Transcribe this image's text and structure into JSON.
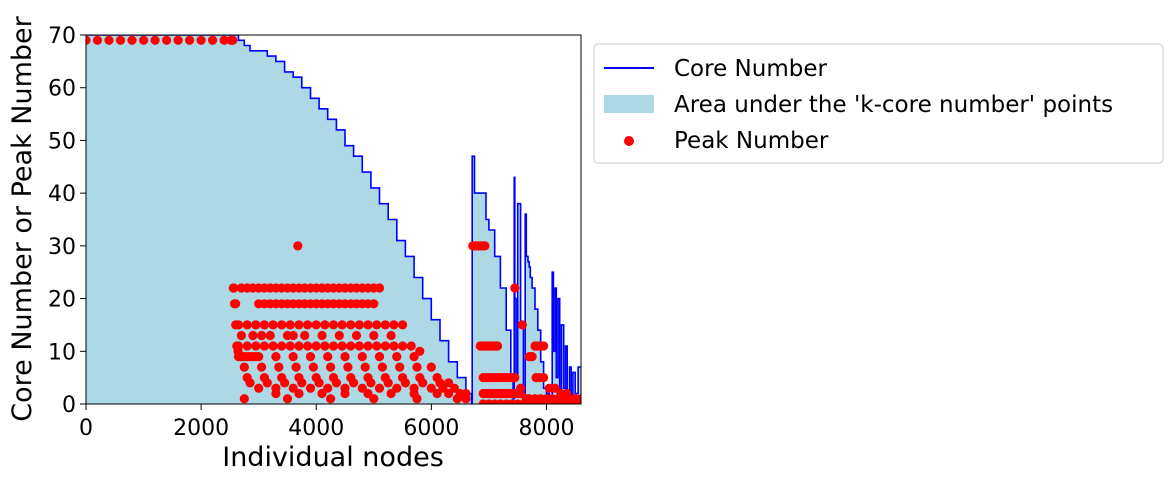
{
  "chart_data": {
    "type": "line",
    "title": "",
    "xlabel": "Individual nodes",
    "ylabel": "Core Number or Peak Number",
    "xlim": [
      0,
      8600
    ],
    "ylim": [
      0,
      70
    ],
    "xticks": [
      0,
      2000,
      4000,
      6000,
      8000
    ],
    "yticks": [
      0,
      10,
      20,
      30,
      40,
      50,
      60,
      70
    ],
    "grid": false,
    "legend_position": "outside-right-top",
    "legend": {
      "core": "Core Number",
      "area": "Area under the 'k-core number' points",
      "peak": "Peak Number"
    },
    "colors": {
      "line": "#0000ff",
      "area": "#add8e6",
      "points": "#ff0000"
    },
    "series": [
      {
        "name": "Core Number",
        "x": [
          0,
          2550,
          2650,
          2750,
          2850,
          3000,
          3150,
          3300,
          3450,
          3600,
          3750,
          3900,
          4050,
          4200,
          4350,
          4500,
          4650,
          4800,
          4950,
          5100,
          5250,
          5400,
          5550,
          5700,
          5850,
          6000,
          6150,
          6300,
          6450,
          6600,
          6700,
          6710,
          6750,
          6780,
          6900,
          6950,
          7000,
          7100,
          7200,
          7300,
          7380,
          7420,
          7440,
          7450,
          7470,
          7500,
          7550,
          7600,
          7630,
          7650,
          7680,
          7700,
          7720,
          7750,
          7800,
          7850,
          7900,
          7950,
          8000,
          8050,
          8080,
          8100,
          8120,
          8150,
          8170,
          8200,
          8230,
          8260,
          8300,
          8330,
          8360,
          8400,
          8430,
          8460,
          8500,
          8550,
          8600
        ],
        "y": [
          70,
          70,
          69,
          68,
          67,
          67,
          66,
          65,
          63,
          62,
          60,
          58,
          56,
          54,
          52,
          49,
          47,
          44,
          41,
          38,
          35,
          31,
          28,
          24,
          20,
          16,
          12,
          8,
          5,
          2,
          0,
          47,
          40,
          40,
          40,
          35,
          33,
          28,
          22,
          14,
          5,
          1,
          43,
          20,
          5,
          38,
          15,
          2,
          36,
          28,
          27,
          26,
          24,
          22,
          18,
          14,
          8,
          3,
          2,
          1,
          0,
          25,
          10,
          22,
          5,
          20,
          2,
          15,
          3,
          11,
          1,
          7,
          0,
          6,
          2,
          7,
          7
        ]
      },
      {
        "name": "Peak Number",
        "x": [
          0,
          200,
          400,
          600,
          800,
          1000,
          1200,
          1400,
          1600,
          1800,
          2000,
          2200,
          2400,
          2520,
          2550,
          2560,
          2570,
          2580,
          2600,
          2600,
          2620,
          2640,
          2650,
          2700,
          2750,
          2800,
          2850,
          2900,
          2950,
          2700,
          2800,
          2900,
          3000,
          3100,
          3200,
          3300,
          3400,
          3500,
          3600,
          3700,
          3800,
          3900,
          4000,
          4100,
          4200,
          4300,
          4400,
          4500,
          4600,
          4700,
          4800,
          4900,
          5000,
          5100,
          3000,
          3100,
          3200,
          3300,
          3400,
          3500,
          3600,
          3700,
          3800,
          3900,
          4000,
          4100,
          4200,
          4300,
          4400,
          4500,
          4600,
          4700,
          4800,
          4900,
          5000,
          2650,
          2800,
          2950,
          3100,
          3250,
          3400,
          3550,
          3700,
          3850,
          4000,
          4150,
          4300,
          4450,
          4600,
          4750,
          4900,
          5050,
          5200,
          5350,
          5500,
          2700,
          2900,
          3050,
          3200,
          3500,
          3600,
          3800,
          4100,
          4400,
          4700,
          5000,
          5300,
          2650,
          2800,
          2950,
          3100,
          3250,
          3400,
          3550,
          3700,
          3850,
          4000,
          4150,
          4300,
          4450,
          4600,
          4750,
          4900,
          5050,
          5200,
          5350,
          5500,
          5650,
          5800,
          2700,
          3000,
          3300,
          3600,
          3900,
          4200,
          4500,
          4800,
          5100,
          5400,
          5700,
          2750,
          3050,
          3350,
          3650,
          3950,
          4250,
          4550,
          4850,
          5150,
          5450,
          5750,
          6000,
          2800,
          3100,
          3400,
          3700,
          4000,
          4300,
          4600,
          4900,
          5200,
          5500,
          5800,
          6100,
          2850,
          3150,
          3450,
          3750,
          4050,
          4350,
          4650,
          4950,
          5250,
          5550,
          5850,
          6150,
          6300,
          3000,
          3300,
          3600,
          3900,
          4200,
          4500,
          4800,
          5100,
          5400,
          5700,
          6000,
          6200,
          6400,
          3300,
          3700,
          4100,
          4500,
          4900,
          5300,
          5700,
          6100,
          6300,
          6500,
          6600,
          2750,
          3500,
          4250,
          5000,
          5750,
          6450,
          6600,
          3680,
          6720,
          6750,
          6780,
          6810,
          6840,
          6870,
          6900,
          6930,
          6850,
          6880,
          6910,
          6940,
          6970,
          7000,
          7030,
          7060,
          7090,
          7120,
          7150,
          6900,
          6950,
          7000,
          7050,
          7100,
          7150,
          7200,
          7250,
          7300,
          7350,
          7400,
          7450,
          6900,
          6950,
          7000,
          7050,
          7100,
          7150,
          7200,
          7250,
          7300,
          7350,
          7400,
          7450,
          7500,
          7550,
          6900,
          7000,
          7100,
          7200,
          7300,
          7400,
          7500,
          7600,
          7700,
          7800,
          7900,
          8000,
          8100,
          8200,
          8300,
          8400,
          8500,
          8600,
          7450,
          7420,
          7580,
          7550,
          7800,
          7850,
          7900,
          7950,
          7700,
          7750,
          7820,
          7880,
          7650,
          7700,
          7800,
          7900,
          8000,
          8100,
          8200,
          8300,
          8400,
          8500,
          8600,
          7950,
          8050,
          8150,
          8250,
          8350
        ],
        "y": [
          69,
          69,
          69,
          69,
          69,
          69,
          69,
          69,
          69,
          69,
          69,
          69,
          69,
          69,
          69,
          22,
          22,
          19,
          19,
          15,
          11,
          10,
          9,
          9,
          9,
          9,
          9,
          9,
          9,
          22,
          22,
          22,
          22,
          22,
          22,
          22,
          22,
          22,
          22,
          22,
          22,
          22,
          22,
          22,
          22,
          22,
          22,
          22,
          22,
          22,
          22,
          22,
          22,
          22,
          19,
          19,
          19,
          19,
          19,
          19,
          19,
          19,
          19,
          19,
          19,
          19,
          19,
          19,
          19,
          19,
          19,
          19,
          19,
          19,
          19,
          15,
          15,
          15,
          15,
          15,
          15,
          15,
          15,
          15,
          15,
          15,
          15,
          15,
          15,
          15,
          15,
          15,
          15,
          15,
          15,
          13,
          13,
          13,
          13,
          13,
          13,
          13,
          13,
          13,
          13,
          13,
          13,
          11,
          11,
          11,
          11,
          11,
          11,
          11,
          11,
          11,
          11,
          11,
          11,
          11,
          11,
          11,
          11,
          11,
          11,
          11,
          11,
          11,
          10,
          9,
          9,
          9,
          9,
          9,
          9,
          9,
          9,
          9,
          9,
          9,
          7,
          7,
          7,
          7,
          7,
          7,
          7,
          7,
          7,
          7,
          7,
          7,
          5,
          5,
          5,
          5,
          5,
          5,
          5,
          5,
          5,
          5,
          5,
          5,
          4,
          4,
          4,
          4,
          4,
          4,
          4,
          4,
          4,
          4,
          4,
          4,
          4,
          3,
          3,
          3,
          3,
          3,
          3,
          3,
          3,
          3,
          3,
          3,
          3,
          3,
          2,
          2,
          2,
          2,
          2,
          2,
          2,
          2,
          2,
          2,
          2,
          1,
          1,
          1,
          1,
          1,
          1,
          1,
          30,
          30,
          30,
          30,
          30,
          30,
          30,
          30,
          30,
          11,
          11,
          11,
          11,
          11,
          11,
          11,
          11,
          11,
          11,
          11,
          5,
          5,
          5,
          5,
          5,
          5,
          5,
          5,
          5,
          5,
          5,
          5,
          2,
          2,
          2,
          2,
          2,
          2,
          2,
          2,
          2,
          2,
          2,
          2,
          2,
          2,
          0,
          0,
          0,
          0,
          0,
          0,
          0,
          0,
          0,
          0,
          0,
          0,
          0,
          0,
          0,
          0,
          0,
          0,
          22,
          5,
          15,
          3,
          11,
          11,
          11,
          11,
          9,
          9,
          5,
          5,
          1,
          1,
          1,
          1,
          1,
          1,
          1,
          1,
          1,
          1,
          1,
          5,
          3,
          3,
          2,
          2
        ]
      }
    ]
  }
}
